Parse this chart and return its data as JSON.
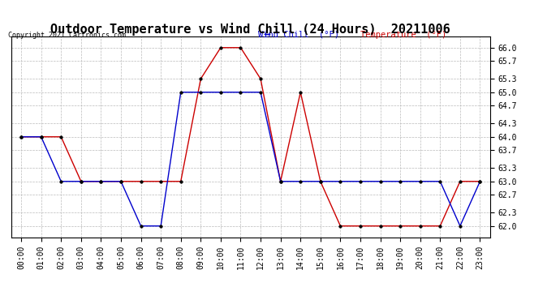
{
  "title": "Outdoor Temperature vs Wind Chill (24 Hours)  20211006",
  "copyright": "Copyright 2021 Cartronics.com",
  "legend_wind_chill": "Wind Chill  (°F)",
  "legend_temperature": "Temperature  (°F)",
  "x_labels": [
    "00:00",
    "01:00",
    "02:00",
    "03:00",
    "04:00",
    "05:00",
    "06:00",
    "07:00",
    "08:00",
    "09:00",
    "10:00",
    "11:00",
    "12:00",
    "13:00",
    "14:00",
    "15:00",
    "16:00",
    "17:00",
    "18:00",
    "19:00",
    "20:00",
    "21:00",
    "22:00",
    "23:00"
  ],
  "temperature_data": [
    64.0,
    64.0,
    64.0,
    63.0,
    63.0,
    63.0,
    63.0,
    63.0,
    63.0,
    65.3,
    66.0,
    66.0,
    65.3,
    63.0,
    65.0,
    63.0,
    62.0,
    62.0,
    62.0,
    62.0,
    62.0,
    62.0,
    63.0,
    63.0
  ],
  "wind_chill_data": [
    64.0,
    64.0,
    63.0,
    63.0,
    63.0,
    63.0,
    62.0,
    62.0,
    65.0,
    65.0,
    65.0,
    65.0,
    65.0,
    63.0,
    63.0,
    63.0,
    63.0,
    63.0,
    63.0,
    63.0,
    63.0,
    63.0,
    62.0,
    63.0
  ],
  "temp_color": "#cc0000",
  "wind_chill_color": "#0000cc",
  "ylim_min": 61.75,
  "ylim_max": 66.25,
  "y_ticks": [
    62.0,
    62.3,
    62.7,
    63.0,
    63.3,
    63.7,
    64.0,
    64.3,
    64.7,
    65.0,
    65.3,
    65.7,
    66.0
  ],
  "background_color": "#ffffff",
  "grid_color": "#bbbbbb",
  "title_fontsize": 11,
  "tick_fontsize": 7,
  "legend_fontsize": 7.5
}
